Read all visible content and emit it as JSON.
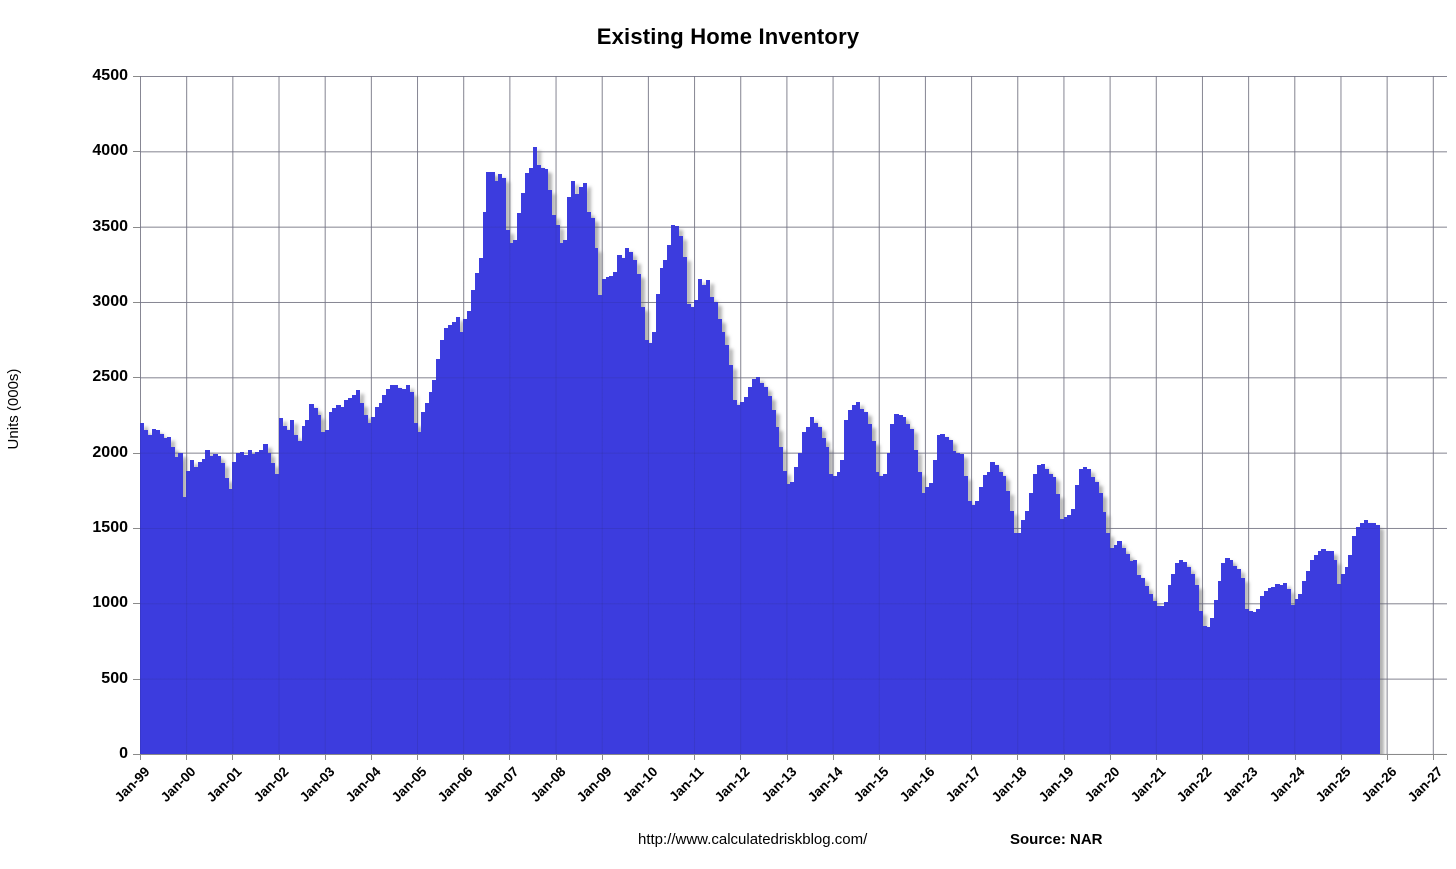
{
  "title": "Existing Home Inventory",
  "y_axis": {
    "label": "Units (000s)",
    "min": 0,
    "max": 4500,
    "tick_step": 500,
    "tick_labels": [
      "4500",
      "4000",
      "3500",
      "3000",
      "2500",
      "2000",
      "1500",
      "1000",
      "500",
      "0"
    ]
  },
  "x_axis": {
    "tick_labels": [
      "Jan-99",
      "Jan-00",
      "Jan-01",
      "Jan-02",
      "Jan-03",
      "Jan-04",
      "Jan-05",
      "Jan-06",
      "Jan-07",
      "Jan-08",
      "Jan-09",
      "Jan-10",
      "Jan-11",
      "Jan-12",
      "Jan-13",
      "Jan-14",
      "Jan-15",
      "Jan-16",
      "Jan-17",
      "Jan-18",
      "Jan-19",
      "Jan-20",
      "Jan-21",
      "Jan-22",
      "Jan-23",
      "Jan-24",
      "Jan-25",
      "Jan-26",
      "Jan-27"
    ]
  },
  "footer": {
    "url": "http://www.calculatedriskblog.com/",
    "source": "Source: NAR"
  },
  "colors": {
    "bar": "#3C3CDE",
    "gridline": "#9B9B9B",
    "bar_shadow": "rgba(120,120,120,0.55)"
  },
  "chart_data": {
    "type": "bar",
    "title": "Existing Home Inventory",
    "ylabel": "Units (000s)",
    "ylim": [
      0,
      4500
    ],
    "grid": true,
    "frequency": "monthly",
    "unit": "thousands of units",
    "start": "1999-01",
    "end": "2025-10",
    "x_axis_span": [
      "Jan-99",
      "Jan-27"
    ],
    "peak": {
      "month": "2007-07",
      "value": 4030
    },
    "record_low": {
      "month": "2022-02",
      "value": 845
    },
    "values": [
      2195,
      2150,
      2120,
      2160,
      2150,
      2125,
      2095,
      2105,
      2035,
      1970,
      2000,
      1705,
      1880,
      1950,
      1905,
      1935,
      1960,
      2015,
      1980,
      1990,
      1975,
      1930,
      1830,
      1760,
      1940,
      1995,
      2005,
      1985,
      2015,
      1990,
      2005,
      2020,
      2060,
      1995,
      1930,
      1860,
      2230,
      2180,
      2150,
      2215,
      2115,
      2080,
      2180,
      2215,
      2320,
      2295,
      2250,
      2140,
      2150,
      2270,
      2295,
      2315,
      2305,
      2350,
      2360,
      2380,
      2415,
      2330,
      2250,
      2195,
      2235,
      2300,
      2330,
      2380,
      2420,
      2450,
      2450,
      2430,
      2420,
      2450,
      2400,
      2200,
      2135,
      2270,
      2330,
      2405,
      2480,
      2620,
      2750,
      2830,
      2850,
      2870,
      2900,
      2800,
      2890,
      2940,
      3080,
      3190,
      3290,
      3600,
      3860,
      3860,
      3800,
      3850,
      3820,
      3475,
      3390,
      3410,
      3590,
      3725,
      3855,
      3890,
      4030,
      3910,
      3890,
      3880,
      3745,
      3580,
      3510,
      3390,
      3410,
      3700,
      3800,
      3720,
      3765,
      3790,
      3600,
      3555,
      3360,
      3045,
      3155,
      3165,
      3175,
      3200,
      3310,
      3290,
      3360,
      3330,
      3280,
      3185,
      2970,
      2745,
      2725,
      2800,
      3055,
      3225,
      3280,
      3380,
      3510,
      3505,
      3435,
      3300,
      2990,
      2970,
      3015,
      3155,
      3110,
      3145,
      3035,
      3000,
      2890,
      2800,
      2715,
      2580,
      2350,
      2315,
      2335,
      2370,
      2435,
      2490,
      2500,
      2465,
      2435,
      2375,
      2280,
      2170,
      2035,
      1880,
      1795,
      1805,
      1905,
      1995,
      2135,
      2170,
      2235,
      2200,
      2170,
      2100,
      2035,
      1860,
      1845,
      1875,
      1950,
      2215,
      2280,
      2315,
      2335,
      2290,
      2270,
      2190,
      2080,
      1875,
      1845,
      1860,
      2000,
      2190,
      2255,
      2250,
      2235,
      2190,
      2155,
      2020,
      1870,
      1730,
      1770,
      1800,
      1950,
      2115,
      2125,
      2105,
      2085,
      2010,
      2000,
      1990,
      1845,
      1680,
      1650,
      1680,
      1770,
      1850,
      1870,
      1935,
      1915,
      1870,
      1845,
      1745,
      1615,
      1465,
      1465,
      1550,
      1615,
      1735,
      1860,
      1915,
      1925,
      1895,
      1860,
      1840,
      1725,
      1560,
      1570,
      1585,
      1625,
      1785,
      1895,
      1905,
      1895,
      1840,
      1805,
      1735,
      1605,
      1465,
      1370,
      1390,
      1415,
      1370,
      1325,
      1280,
      1290,
      1190,
      1170,
      1115,
      1060,
      1015,
      985,
      980,
      1010,
      1120,
      1195,
      1265,
      1285,
      1275,
      1240,
      1195,
      1120,
      950,
      850,
      845,
      905,
      1020,
      1150,
      1265,
      1300,
      1290,
      1250,
      1225,
      1165,
      960,
      950,
      945,
      960,
      1050,
      1085,
      1100,
      1110,
      1130,
      1120,
      1135,
      1095,
      990,
      1030,
      1065,
      1150,
      1215,
      1285,
      1320,
      1350,
      1360,
      1350,
      1350,
      1290,
      1130,
      1195,
      1240,
      1320,
      1450,
      1510,
      1530,
      1550,
      1530,
      1530,
      1520
    ]
  }
}
